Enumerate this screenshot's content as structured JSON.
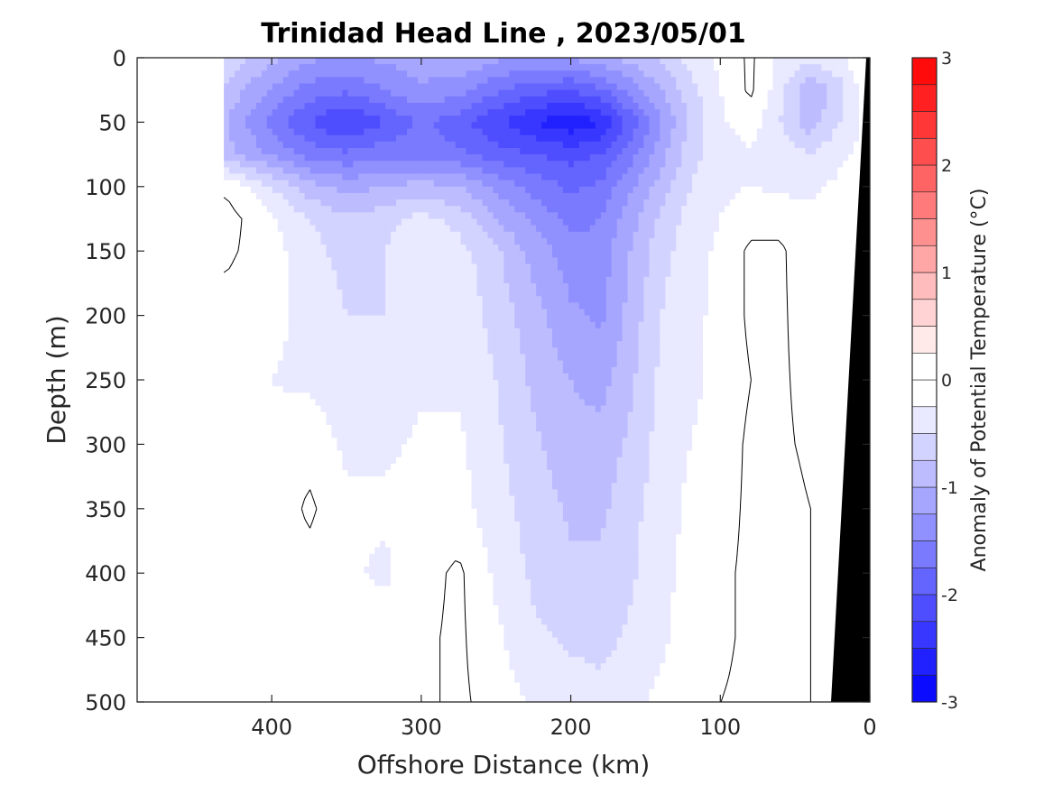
{
  "chart_data": {
    "type": "heatmap",
    "title": "Trinidad Head Line , 2023/05/01",
    "xlabel": "Offshore Distance (km)",
    "ylabel": "Depth (m)",
    "xlim": [
      490,
      0
    ],
    "ylim": [
      0,
      500
    ],
    "x_reversed": true,
    "y_reversed": true,
    "xticks": [
      400,
      300,
      200,
      100,
      0
    ],
    "yticks": [
      0,
      50,
      100,
      150,
      200,
      250,
      300,
      350,
      400,
      450,
      500
    ],
    "grid": false,
    "colorbar": {
      "label": "Anomaly of Potential Temperature (°C)",
      "range": [
        -3,
        3
      ],
      "step": 0.25,
      "ticks": [
        3,
        2,
        1,
        0,
        -1,
        -2,
        -3
      ],
      "low_color": "#0000ff",
      "mid_color": "#ffffff",
      "high_color": "#ff0000"
    },
    "zero_contour": true,
    "bathymetry_color": "#000000",
    "data_extent_km": [
      432,
      0
    ],
    "field_grid": {
      "x": [
        430,
        400,
        375,
        350,
        325,
        300,
        275,
        250,
        225,
        200,
        180,
        160,
        140,
        120,
        100,
        80,
        60,
        40,
        20,
        5
      ],
      "z": [
        0,
        25,
        50,
        75,
        100,
        125,
        150,
        200,
        250,
        300,
        350,
        400,
        450,
        500
      ],
      "values": [
        [
          -0.6,
          -0.9,
          -1.2,
          -1.3,
          -1.2,
          -1.1,
          -1.0,
          -1.2,
          -1.3,
          -1.2,
          -1.1,
          -0.9,
          -0.7,
          -0.4,
          -0.2,
          0.05,
          -0.3,
          -0.4,
          -0.3,
          0.0
        ],
        [
          -0.8,
          -1.3,
          -1.6,
          -1.7,
          -1.5,
          -1.3,
          -1.4,
          -1.7,
          -1.9,
          -2.0,
          -1.8,
          -1.4,
          -1.0,
          -0.6,
          -0.25,
          0.05,
          -0.4,
          -1.0,
          -0.6,
          -0.2
        ],
        [
          -1.0,
          -1.6,
          -2.0,
          -2.3,
          -2.0,
          -1.7,
          -1.9,
          -2.2,
          -2.5,
          -2.7,
          -2.5,
          -1.9,
          -1.3,
          -0.7,
          -0.3,
          -0.1,
          -0.5,
          -0.9,
          -0.5,
          -0.2
        ],
        [
          -0.9,
          -1.3,
          -1.6,
          -1.7,
          -1.6,
          -1.6,
          -1.7,
          -1.9,
          -2.0,
          -2.1,
          -2.0,
          -1.6,
          -1.1,
          -0.6,
          -0.35,
          -0.3,
          -0.35,
          -0.5,
          -0.3,
          -0.2
        ],
        [
          -0.05,
          -0.5,
          -0.9,
          -1.1,
          -1.0,
          -0.9,
          -1.0,
          -1.3,
          -1.6,
          -1.8,
          -1.7,
          -1.3,
          -0.9,
          -0.5,
          -0.3,
          -0.25,
          -0.3,
          -0.3,
          -0.2,
          -0.1
        ],
        [
          0.1,
          -0.2,
          -0.5,
          -0.7,
          -0.6,
          -0.4,
          -0.6,
          -1.0,
          -1.3,
          -1.6,
          -1.5,
          -1.1,
          -0.7,
          -0.4,
          -0.25,
          -0.1,
          -0.1,
          -0.2,
          -0.2,
          -0.1
        ],
        [
          0.05,
          -0.15,
          -0.4,
          -0.6,
          -0.5,
          -0.3,
          -0.4,
          -0.7,
          -1.1,
          -1.4,
          -1.4,
          -1.0,
          -0.6,
          -0.35,
          -0.2,
          0.05,
          0.05,
          -0.2,
          -0.2,
          -0.1
        ],
        [
          -0.1,
          -0.2,
          -0.3,
          -0.5,
          -0.5,
          -0.3,
          -0.3,
          -0.6,
          -0.9,
          -1.2,
          -1.3,
          -0.9,
          -0.5,
          -0.3,
          -0.2,
          0.05,
          0.05,
          -0.15,
          -0.1,
          -0.1
        ],
        [
          -0.15,
          -0.25,
          -0.3,
          -0.4,
          -0.5,
          -0.3,
          -0.3,
          -0.5,
          -0.8,
          -1.0,
          -1.1,
          -0.8,
          -0.45,
          -0.3,
          -0.2,
          0.0,
          0.05,
          -0.1,
          -0.1,
          -0.05
        ],
        [
          -0.15,
          -0.2,
          -0.1,
          -0.3,
          -0.3,
          -0.2,
          -0.2,
          -0.45,
          -0.7,
          -0.9,
          -0.9,
          -0.7,
          -0.4,
          -0.25,
          -0.15,
          0.05,
          0.05,
          -0.05,
          -0.05,
          0.0
        ],
        [
          -0.15,
          -0.2,
          0.05,
          -0.2,
          -0.2,
          -0.2,
          -0.15,
          -0.4,
          -0.6,
          -0.8,
          -0.8,
          -0.6,
          -0.35,
          -0.2,
          -0.1,
          0.05,
          0.1,
          0.0,
          0.0,
          0.0
        ],
        [
          -0.15,
          -0.2,
          -0.1,
          -0.2,
          -0.3,
          -0.1,
          0.05,
          -0.3,
          -0.55,
          -0.7,
          -0.7,
          -0.55,
          -0.3,
          -0.2,
          -0.05,
          0.05,
          0.05,
          0.0,
          0.0,
          0.0
        ],
        [
          -0.15,
          -0.2,
          -0.2,
          -0.25,
          -0.1,
          -0.05,
          0.05,
          -0.2,
          -0.45,
          -0.55,
          -0.6,
          -0.45,
          -0.3,
          -0.15,
          -0.05,
          0.05,
          0.05,
          0.0,
          0.0,
          0.0
        ],
        [
          -0.15,
          -0.15,
          -0.15,
          -0.1,
          -0.05,
          -0.05,
          0.05,
          -0.1,
          -0.3,
          -0.35,
          -0.4,
          -0.3,
          -0.2,
          -0.1,
          0.0,
          0.05,
          0.05,
          0.0,
          0.0,
          0.0
        ]
      ]
    }
  }
}
